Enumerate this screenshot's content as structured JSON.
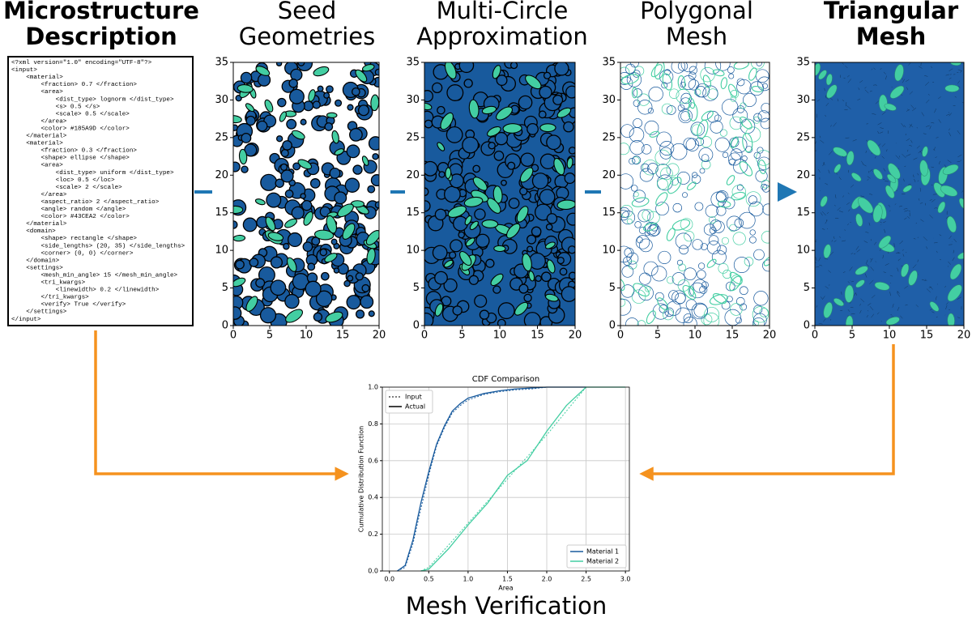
{
  "stages": [
    {
      "title": [
        "Microstructure",
        "Description"
      ],
      "bold": true
    },
    {
      "title": [
        "Seed",
        "Geometries"
      ],
      "bold": false
    },
    {
      "title": [
        "Multi-Circle",
        "Approximation"
      ],
      "bold": false
    },
    {
      "title": [
        "Polygonal",
        "Mesh"
      ],
      "bold": false
    },
    {
      "title": [
        "Triangular",
        "Mesh"
      ],
      "bold": true
    }
  ],
  "xml_lines": [
    "<?xml version=\"1.0\" encoding=\"UTF-8\"?>",
    "<input>",
    "    <material>",
    "        <fraction> 0.7 </fraction>",
    "        <area>",
    "            <dist_type> lognorm </dist_type>",
    "            <s> 0.5 </s>",
    "            <scale> 0.5 </scale>",
    "        </area>",
    "        <color> #185A9D </color>",
    "    </material>",
    "    <material>",
    "        <fraction> 0.3 </fraction>",
    "        <shape> ellipse </shape>",
    "        <area>",
    "            <dist_type> uniform </dist_type>",
    "            <loc> 0.5 </loc>",
    "            <scale> 2 </scale>",
    "        </area>",
    "        <aspect_ratio> 2 </aspect_ratio>",
    "        <angle> random </angle>",
    "        <color> #43CEA2 </color>",
    "    </material>",
    "    <domain>",
    "        <shape> rectangle </shape>",
    "        <side_lengths> (20, 35) </side_lengths>",
    "        <corner> (0, 0) </corner>",
    "    </domain>",
    "    <settings>",
    "        <mesh_min_angle> 15 </mesh_min_angle>",
    "        <tri_kwargs>",
    "            <linewidth> 0.2 </linewidth>",
    "        </tri_kwargs>",
    "        <verify> True </verify>",
    "    </settings>",
    "</input>"
  ],
  "panel_axes": {
    "xlim": [
      0,
      20
    ],
    "ylim": [
      0,
      35
    ],
    "xticks": [
      0,
      5,
      10,
      15,
      20
    ],
    "yticks": [
      0,
      5,
      10,
      15,
      20,
      25,
      30,
      35
    ]
  },
  "verification_title": "Mesh Verification",
  "chart_data": {
    "type": "line",
    "title": "CDF Comparison",
    "xlabel": "Area",
    "ylabel": "Cumulative Distribution Function",
    "xlim": [
      -0.09,
      3.05
    ],
    "ylim": [
      0,
      1
    ],
    "xticks": [
      {
        "value": 0,
        "label": "0.0"
      },
      0.5,
      {
        "value": 1,
        "label": "1.0"
      },
      1.5,
      {
        "value": 2,
        "label": "2.0"
      },
      2.5,
      {
        "value": 3,
        "label": "3.0"
      }
    ],
    "yticks": [
      {
        "value": 0,
        "label": "0.0"
      },
      0.2,
      0.4,
      0.6,
      0.8,
      {
        "value": 1,
        "label": "1.0"
      }
    ],
    "grid": true,
    "line_styles": [
      "Input",
      "Actual"
    ],
    "series": [
      {
        "name": "Material 1",
        "color": "#185A9D",
        "x": [
          0.1,
          0.2,
          0.3,
          0.4,
          0.5,
          0.6,
          0.7,
          0.8,
          0.9,
          1.0,
          1.2,
          1.4,
          1.6,
          1.8,
          2.0,
          2.5
        ],
        "input": [
          0,
          0.02,
          0.15,
          0.34,
          0.52,
          0.68,
          0.78,
          0.86,
          0.9,
          0.93,
          0.96,
          0.975,
          0.985,
          0.99,
          1.0,
          1.0
        ],
        "actual": [
          0,
          0.03,
          0.17,
          0.37,
          0.54,
          0.69,
          0.79,
          0.87,
          0.91,
          0.94,
          0.965,
          0.98,
          0.99,
          0.995,
          1.0,
          1.0
        ]
      },
      {
        "name": "Material 2",
        "color": "#43CEA2",
        "x": [
          0.4,
          0.5,
          0.75,
          1.0,
          1.25,
          1.5,
          1.75,
          2.0,
          2.25,
          2.5,
          3.0
        ],
        "input": [
          0,
          0.02,
          0.14,
          0.26,
          0.38,
          0.5,
          0.62,
          0.74,
          0.87,
          1.0,
          1.0
        ],
        "actual": [
          0,
          0.01,
          0.12,
          0.25,
          0.37,
          0.52,
          0.6,
          0.76,
          0.9,
          1.0,
          1.0
        ]
      }
    ]
  }
}
